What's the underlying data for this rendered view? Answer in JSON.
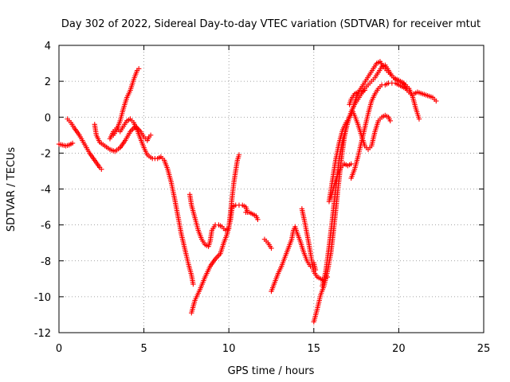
{
  "chart_data": {
    "type": "scatter",
    "title": "Day 302 of 2022, Sidereal Day-to-day VTEC variation (SDTVAR) for receiver mtut",
    "xlabel": "GPS time / hours",
    "ylabel": "SDTVAR / TECUs",
    "xlim": [
      0,
      25
    ],
    "ylim": [
      -12,
      4
    ],
    "xticks": [
      0,
      5,
      10,
      15,
      20,
      25
    ],
    "yticks": [
      -12,
      -10,
      -8,
      -6,
      -4,
      -2,
      0,
      2,
      4
    ],
    "xtick_labels": [
      "0",
      "5",
      "10",
      "15",
      "20",
      "25"
    ],
    "ytick_labels": [
      "-12",
      "-10",
      "-8",
      "-6",
      "-4",
      "-2",
      "0",
      "2",
      "4"
    ],
    "grid": true,
    "grid_style": "dotted",
    "marker": "+",
    "color": "#ff0000",
    "series": [
      {
        "points": [
          [
            0.0,
            -1.5
          ],
          [
            0.2,
            -1.55
          ],
          [
            0.4,
            -1.6
          ],
          [
            0.6,
            -1.55
          ],
          [
            0.8,
            -1.45
          ]
        ]
      },
      {
        "points": [
          [
            0.5,
            -0.1
          ],
          [
            0.7,
            -0.3
          ],
          [
            0.9,
            -0.6
          ],
          [
            1.2,
            -1.0
          ],
          [
            1.5,
            -1.5
          ],
          [
            1.8,
            -2.0
          ],
          [
            2.1,
            -2.4
          ],
          [
            2.4,
            -2.8
          ],
          [
            2.5,
            -2.9
          ]
        ]
      },
      {
        "points": [
          [
            2.1,
            -0.4
          ],
          [
            2.2,
            -1.0
          ],
          [
            2.4,
            -1.4
          ],
          [
            2.7,
            -1.6
          ],
          [
            3.0,
            -1.8
          ],
          [
            3.3,
            -1.9
          ],
          [
            3.6,
            -1.7
          ],
          [
            3.9,
            -1.3
          ],
          [
            4.2,
            -0.8
          ],
          [
            4.5,
            -0.5
          ],
          [
            4.8,
            -0.8
          ],
          [
            5.0,
            -1.1
          ],
          [
            5.2,
            -1.3
          ],
          [
            5.3,
            -1.1
          ],
          [
            5.4,
            -1.0
          ]
        ]
      },
      {
        "points": [
          [
            3.0,
            -1.2
          ],
          [
            3.2,
            -0.8
          ],
          [
            3.4,
            -0.6
          ],
          [
            3.6,
            -0.8
          ],
          [
            3.8,
            -0.5
          ],
          [
            4.0,
            -0.2
          ],
          [
            4.2,
            -0.1
          ],
          [
            4.4,
            -0.3
          ],
          [
            4.6,
            -0.7
          ],
          [
            4.8,
            -1.2
          ],
          [
            5.0,
            -1.7
          ],
          [
            5.2,
            -2.1
          ],
          [
            5.5,
            -2.3
          ],
          [
            5.8,
            -2.3
          ],
          [
            6.0,
            -2.2
          ],
          [
            6.2,
            -2.4
          ],
          [
            6.4,
            -2.9
          ],
          [
            6.6,
            -3.6
          ],
          [
            6.8,
            -4.5
          ],
          [
            7.0,
            -5.5
          ],
          [
            7.2,
            -6.5
          ],
          [
            7.4,
            -7.3
          ],
          [
            7.6,
            -8.1
          ],
          [
            7.8,
            -8.8
          ],
          [
            7.9,
            -9.3
          ]
        ]
      },
      {
        "points": [
          [
            3.2,
            -1.0
          ],
          [
            3.4,
            -0.7
          ],
          [
            3.6,
            -0.2
          ],
          [
            3.8,
            0.5
          ],
          [
            4.0,
            1.1
          ],
          [
            4.2,
            1.5
          ],
          [
            4.4,
            2.1
          ],
          [
            4.6,
            2.6
          ],
          [
            4.7,
            2.7
          ]
        ]
      },
      {
        "points": [
          [
            7.7,
            -4.3
          ],
          [
            7.8,
            -4.9
          ],
          [
            8.0,
            -5.6
          ],
          [
            8.2,
            -6.3
          ],
          [
            8.4,
            -6.8
          ],
          [
            8.6,
            -7.1
          ],
          [
            8.8,
            -7.2
          ],
          [
            8.9,
            -6.9
          ],
          [
            9.0,
            -6.3
          ],
          [
            9.2,
            -6.0
          ],
          [
            9.4,
            -6.0
          ],
          [
            9.6,
            -6.1
          ],
          [
            9.8,
            -6.3
          ],
          [
            10.0,
            -6.2
          ]
        ]
      },
      {
        "points": [
          [
            7.8,
            -10.9
          ],
          [
            8.0,
            -10.2
          ],
          [
            8.3,
            -9.6
          ],
          [
            8.6,
            -8.9
          ],
          [
            8.9,
            -8.3
          ],
          [
            9.2,
            -7.9
          ],
          [
            9.5,
            -7.6
          ],
          [
            9.7,
            -7.0
          ],
          [
            9.9,
            -6.5
          ],
          [
            10.1,
            -5.7
          ],
          [
            10.2,
            -5.0
          ],
          [
            10.4,
            -4.9
          ],
          [
            10.6,
            -4.9
          ],
          [
            10.8,
            -4.9
          ],
          [
            11.0,
            -5.0
          ],
          [
            11.1,
            -5.3
          ]
        ]
      },
      {
        "points": [
          [
            10.0,
            -6.1
          ],
          [
            10.1,
            -5.3
          ],
          [
            10.2,
            -4.4
          ],
          [
            10.3,
            -3.6
          ],
          [
            10.4,
            -3.0
          ],
          [
            10.5,
            -2.4
          ],
          [
            10.6,
            -2.1
          ]
        ]
      },
      {
        "points": [
          [
            11.0,
            -5.3
          ],
          [
            11.2,
            -5.3
          ],
          [
            11.4,
            -5.4
          ],
          [
            11.6,
            -5.5
          ],
          [
            11.7,
            -5.7
          ]
        ]
      },
      {
        "points": [
          [
            12.1,
            -6.8
          ],
          [
            12.3,
            -7.0
          ],
          [
            12.5,
            -7.3
          ]
        ]
      },
      {
        "points": [
          [
            12.5,
            -9.7
          ],
          [
            12.7,
            -9.2
          ],
          [
            12.9,
            -8.7
          ],
          [
            13.1,
            -8.3
          ],
          [
            13.3,
            -7.8
          ],
          [
            13.5,
            -7.3
          ],
          [
            13.7,
            -6.8
          ],
          [
            13.8,
            -6.3
          ],
          [
            13.9,
            -6.1
          ],
          [
            14.0,
            -6.4
          ],
          [
            14.2,
            -6.9
          ],
          [
            14.4,
            -7.5
          ],
          [
            14.6,
            -8.0
          ],
          [
            14.8,
            -8.3
          ],
          [
            15.0,
            -8.1
          ],
          [
            15.1,
            -8.5
          ]
        ]
      },
      {
        "points": [
          [
            14.3,
            -5.1
          ],
          [
            14.5,
            -6.0
          ],
          [
            14.7,
            -7.0
          ],
          [
            14.9,
            -8.1
          ],
          [
            15.0,
            -8.6
          ],
          [
            15.2,
            -8.9
          ],
          [
            15.4,
            -9.0
          ],
          [
            15.6,
            -9.1
          ],
          [
            15.8,
            -8.9
          ]
        ]
      },
      {
        "points": [
          [
            15.0,
            -11.4
          ],
          [
            15.2,
            -10.7
          ],
          [
            15.4,
            -9.9
          ],
          [
            15.6,
            -9.4
          ],
          [
            15.8,
            -8.6
          ],
          [
            16.0,
            -7.6
          ],
          [
            16.2,
            -6.0
          ],
          [
            16.4,
            -4.2
          ],
          [
            16.6,
            -2.5
          ],
          [
            16.8,
            -1.1
          ],
          [
            17.0,
            -0.2
          ],
          [
            17.2,
            0.3
          ],
          [
            17.4,
            0.7
          ],
          [
            17.6,
            1.0
          ],
          [
            17.8,
            1.3
          ],
          [
            18.0,
            1.6
          ],
          [
            18.2,
            1.8
          ],
          [
            18.4,
            2.0
          ],
          [
            18.6,
            2.2
          ],
          [
            18.8,
            2.5
          ],
          [
            19.0,
            2.8
          ],
          [
            19.2,
            2.9
          ],
          [
            19.4,
            2.6
          ],
          [
            19.6,
            2.3
          ],
          [
            19.8,
            2.1
          ],
          [
            20.0,
            2.0
          ],
          [
            20.2,
            1.9
          ],
          [
            20.4,
            1.8
          ],
          [
            20.6,
            1.6
          ],
          [
            20.8,
            1.2
          ],
          [
            21.0,
            0.5
          ],
          [
            21.2,
            -0.1
          ]
        ]
      },
      {
        "points": [
          [
            15.5,
            -9.4
          ],
          [
            15.7,
            -8.6
          ],
          [
            15.9,
            -7.2
          ],
          [
            16.1,
            -5.6
          ],
          [
            16.3,
            -3.9
          ],
          [
            16.5,
            -2.3
          ],
          [
            16.7,
            -1.3
          ],
          [
            16.9,
            -0.6
          ],
          [
            17.1,
            0.0
          ],
          [
            17.3,
            0.5
          ],
          [
            17.5,
            1.1
          ],
          [
            17.7,
            1.5
          ],
          [
            17.9,
            1.8
          ],
          [
            18.1,
            2.1
          ],
          [
            18.3,
            2.4
          ],
          [
            18.5,
            2.7
          ],
          [
            18.7,
            3.0
          ],
          [
            18.9,
            3.1
          ],
          [
            19.1,
            2.8
          ],
          [
            19.3,
            2.6
          ],
          [
            19.5,
            2.4
          ],
          [
            19.7,
            2.2
          ],
          [
            19.9,
            2.1
          ],
          [
            20.1,
            2.0
          ],
          [
            20.3,
            1.9
          ],
          [
            20.5,
            1.5
          ],
          [
            20.7,
            1.3
          ],
          [
            20.9,
            1.3
          ],
          [
            21.1,
            1.4
          ],
          [
            21.4,
            1.3
          ],
          [
            21.7,
            1.2
          ],
          [
            22.0,
            1.1
          ],
          [
            22.2,
            0.9
          ]
        ]
      },
      {
        "points": [
          [
            15.9,
            -4.7
          ],
          [
            16.1,
            -3.5
          ],
          [
            16.3,
            -2.3
          ],
          [
            16.5,
            -1.4
          ],
          [
            16.7,
            -0.7
          ],
          [
            16.9,
            -0.3
          ],
          [
            17.1,
            0.0
          ],
          [
            17.3,
            0.3
          ],
          [
            17.4,
            0.1
          ],
          [
            17.6,
            -0.4
          ],
          [
            17.8,
            -1.0
          ],
          [
            18.0,
            -1.6
          ],
          [
            18.2,
            -1.8
          ],
          [
            18.4,
            -1.6
          ],
          [
            18.6,
            -0.8
          ],
          [
            18.8,
            -0.2
          ],
          [
            19.0,
            0.0
          ],
          [
            19.2,
            0.1
          ],
          [
            19.4,
            0.0
          ],
          [
            19.5,
            -0.2
          ]
        ]
      },
      {
        "points": [
          [
            16.0,
            -4.5
          ],
          [
            16.2,
            -3.8
          ],
          [
            16.4,
            -3.2
          ],
          [
            16.6,
            -2.8
          ],
          [
            16.8,
            -2.6
          ],
          [
            17.0,
            -2.7
          ],
          [
            17.2,
            -2.6
          ]
        ]
      },
      {
        "points": [
          [
            17.2,
            -3.4
          ],
          [
            17.4,
            -2.9
          ],
          [
            17.6,
            -2.2
          ],
          [
            17.8,
            -1.4
          ],
          [
            18.0,
            -0.6
          ],
          [
            18.2,
            0.2
          ],
          [
            18.4,
            0.9
          ],
          [
            18.6,
            1.3
          ],
          [
            18.8,
            1.6
          ],
          [
            19.0,
            1.8
          ],
          [
            19.2,
            1.8
          ],
          [
            19.4,
            1.9
          ],
          [
            19.6,
            1.9
          ],
          [
            19.8,
            1.9
          ],
          [
            20.0,
            1.8
          ],
          [
            20.2,
            1.7
          ],
          [
            20.4,
            1.6
          ]
        ]
      },
      {
        "points": [
          [
            17.1,
            0.7
          ],
          [
            17.2,
            1.0
          ],
          [
            17.4,
            1.3
          ],
          [
            17.6,
            1.4
          ],
          [
            17.8,
            1.4
          ],
          [
            18.0,
            1.5
          ]
        ]
      }
    ]
  }
}
